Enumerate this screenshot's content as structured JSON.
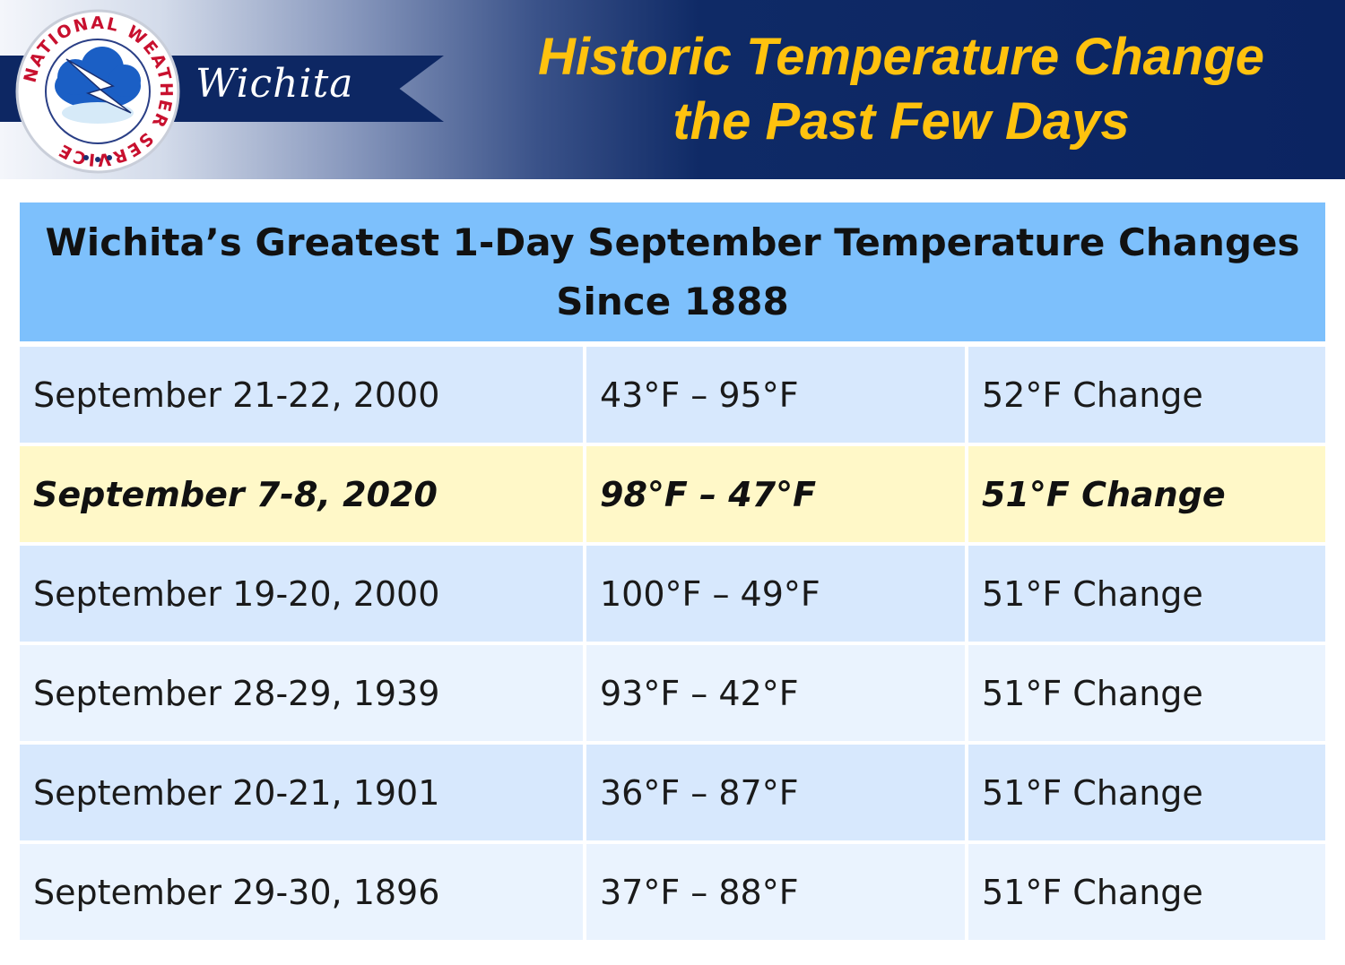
{
  "banner": {
    "office_name": "Wichita",
    "logo_ring_text": "NATIONAL WEATHER SERVICE",
    "title_line1": "Historic Temperature Change",
    "title_line2": "the Past Few Days"
  },
  "table": {
    "header_line1": "Wichita’s Greatest 1-Day September Temperature Changes",
    "header_line2": "Since 1888",
    "rows": [
      {
        "date": "September 21-22, 2000",
        "range": "43°F – 95°F",
        "change": "52°F Change"
      },
      {
        "date": "September 7-8, 2020",
        "range": "98°F – 47°F",
        "change": "51°F Change"
      },
      {
        "date": "September 19-20, 2000",
        "range": "100°F – 49°F",
        "change": "51°F Change"
      },
      {
        "date": "September 28-29, 1939",
        "range": "93°F – 42°F",
        "change": "51°F Change"
      },
      {
        "date": "September 20-21, 1901",
        "range": "36°F – 87°F",
        "change": "51°F Change"
      },
      {
        "date": "September 29-30, 1896",
        "range": "37°F – 88°F",
        "change": "51°F Change"
      }
    ]
  },
  "colors": {
    "navy": "#0d2763",
    "title_gold": "#ffc20e",
    "header_blue": "#7dc0fc",
    "highlight_yellow": "#fff8c8"
  }
}
